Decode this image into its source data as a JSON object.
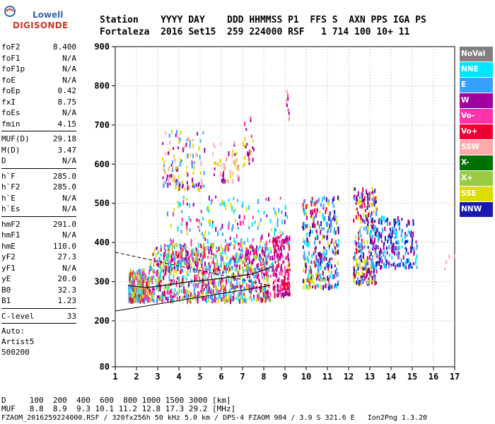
{
  "logo": {
    "brand_small": "Lowell",
    "brand_big": "DIGISONDE"
  },
  "header": {
    "row1": "Station    YYYY DAY    DDD HHMMSS P1  FFS S  AXN PPS IGA PS",
    "row2": "Fortaleza  2016 Set15  259 224000 RSF   1 714 100 10+ 11"
  },
  "sidebar": {
    "groups": [
      [
        {
          "k": "foF2",
          "v": "8.400"
        },
        {
          "k": "foF1",
          "v": "N/A"
        },
        {
          "k": "foF1p",
          "v": "N/A"
        },
        {
          "k": "foE",
          "v": "N/A"
        },
        {
          "k": "foEp",
          "v": "0.42"
        },
        {
          "k": "fxI",
          "v": "8.75"
        },
        {
          "k": "foEs",
          "v": "N/A"
        },
        {
          "k": "fmin",
          "v": "4.15"
        }
      ],
      [
        {
          "k": "MUF(D)",
          "v": "29.18"
        },
        {
          "k": "M(D)",
          "v": "3.47"
        },
        {
          "k": "D",
          "v": "N/A"
        }
      ],
      [
        {
          "k": "h`F",
          "v": "285.0"
        },
        {
          "k": "h`F2",
          "v": "285.0"
        },
        {
          "k": "h`E",
          "v": "N/A"
        },
        {
          "k": "h`Es",
          "v": "N/A"
        }
      ],
      [
        {
          "k": "hmF2",
          "v": "291.0"
        },
        {
          "k": "hmF1",
          "v": "N/A"
        },
        {
          "k": "hmE",
          "v": "110.0"
        },
        {
          "k": "yF2",
          "v": "27.3"
        },
        {
          "k": "yF1",
          "v": "N/A"
        },
        {
          "k": "yE",
          "v": "20.0"
        },
        {
          "k": "B0",
          "v": "32.3"
        },
        {
          "k": "B1",
          "v": "1.23"
        }
      ],
      [
        {
          "k": "C-level",
          "v": "33"
        }
      ]
    ],
    "auto_label": "Auto:",
    "artist": "Artist5",
    "code": "500200"
  },
  "legend": [
    {
      "label": "NoVal",
      "color": "#808080"
    },
    {
      "label": "NNE",
      "color": "#00e5ff"
    },
    {
      "label": "E",
      "color": "#3aa0ff"
    },
    {
      "label": "W",
      "color": "#a000a0"
    },
    {
      "label": "Vo-",
      "color": "#ff33aa"
    },
    {
      "label": "Vo+",
      "color": "#ee0033"
    },
    {
      "label": "SSW",
      "color": "#ffaaaa"
    },
    {
      "label": "X-",
      "color": "#007000"
    },
    {
      "label": "X+",
      "color": "#99cc44"
    },
    {
      "label": "SSE",
      "color": "#dddd00"
    },
    {
      "label": "NNW",
      "color": "#1a1ab0"
    }
  ],
  "bottom": {
    "line1": "D     100  200  400  600  800 1000 1500 3000 [km]",
    "line2": "MUF   8.8  8.9  9.3 10.1 11.2 12.8 17.3 29.2 [MHz]",
    "line3": "FZAOM_2016259224000.RSF / 320fx256h 50 kHz 5.0 km / DPS-4 FZAOM 904 / 3.9 S 321.6 E   Ion2Png 1.3.20"
  },
  "chart_data": {
    "type": "scatter",
    "x_ticks": [
      "1",
      "2",
      "3",
      "4",
      "5",
      "6",
      "7",
      "8",
      "9",
      "10",
      "11",
      "12",
      "13",
      "14",
      "15",
      "16",
      "17"
    ],
    "y_ticks": [
      "80",
      "200",
      "300",
      "400",
      "500",
      "600",
      "700",
      "800",
      "900"
    ],
    "xlim": [
      1,
      17
    ],
    "ylim": [
      80,
      900
    ],
    "grid": "dotted",
    "legend_position": "right",
    "trace_profile": {
      "x": [
        1.6,
        2.5,
        3.5,
        4.5,
        5.5,
        6.5,
        7.5,
        8.0,
        8.4
      ],
      "y": [
        290,
        285,
        292,
        300,
        305,
        312,
        320,
        330,
        338
      ]
    },
    "upper_bound": {
      "x": [
        1.0,
        8.3
      ],
      "y": [
        375,
        290
      ]
    },
    "lower_bound": {
      "x": [
        1.0,
        8.3
      ],
      "y": [
        225,
        290
      ]
    },
    "clusters": [
      {
        "x": [
          1.6,
          2.6
        ],
        "y": [
          255,
          335
        ],
        "n": 260,
        "colors": [
          9,
          5,
          1,
          4,
          8,
          2
        ]
      },
      {
        "x": [
          2.6,
          8.3
        ],
        "y": [
          255,
          400
        ],
        "n": 900,
        "colors": [
          5,
          4,
          1,
          2,
          3,
          9,
          8
        ]
      },
      {
        "x": [
          3.4,
          9.2
        ],
        "y": [
          330,
          520
        ],
        "n": 280,
        "colors": [
          1,
          2,
          4,
          3,
          9
        ]
      },
      {
        "x": [
          8.4,
          9.2
        ],
        "y": [
          270,
          420
        ],
        "n": 160,
        "colors": [
          5,
          4,
          3
        ]
      },
      {
        "x": [
          3.2,
          5.2
        ],
        "y": [
          540,
          690
        ],
        "n": 130,
        "colors": [
          9,
          3,
          6,
          2
        ]
      },
      {
        "x": [
          5.5,
          6.8
        ],
        "y": [
          560,
          660
        ],
        "n": 50,
        "colors": [
          9,
          3,
          6
        ]
      },
      {
        "x": [
          7.0,
          7.5
        ],
        "y": [
          600,
          740
        ],
        "n": 25,
        "colors": [
          9,
          3,
          4
        ]
      },
      {
        "x": [
          9.0,
          9.2
        ],
        "y": [
          720,
          790
        ],
        "n": 10,
        "colors": [
          3,
          4,
          6
        ]
      },
      {
        "x": [
          9.8,
          11.5
        ],
        "y": [
          290,
          520
        ],
        "n": 320,
        "colors": [
          1,
          2,
          10,
          3,
          5,
          9
        ]
      },
      {
        "x": [
          12.2,
          13.3
        ],
        "y": [
          300,
          545
        ],
        "n": 260,
        "colors": [
          3,
          10,
          9,
          5,
          2
        ]
      },
      {
        "x": [
          13.0,
          15.2
        ],
        "y": [
          340,
          470
        ],
        "n": 230,
        "colors": [
          3,
          10,
          1,
          2
        ]
      },
      {
        "x": [
          16.3,
          17.0
        ],
        "y": [
          330,
          380
        ],
        "n": 4,
        "colors": [
          6
        ]
      }
    ]
  }
}
